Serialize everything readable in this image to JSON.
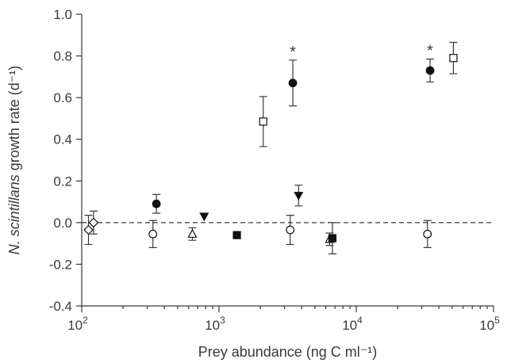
{
  "chart_data": {
    "type": "scatter",
    "title": "",
    "xlabel": "Prey abundance (ng C ml⁻¹)",
    "ylabel_italic": "N. scintillans",
    "ylabel_rest": " growth rate (d⁻¹)",
    "x_scale": "log",
    "xlim": [
      100,
      100000
    ],
    "ylim": [
      -0.4,
      1.0
    ],
    "x_ticks": [
      {
        "value": 100,
        "base": "10",
        "exp": "2"
      },
      {
        "value": 1000,
        "base": "10",
        "exp": "3"
      },
      {
        "value": 10000,
        "base": "10",
        "exp": "4"
      },
      {
        "value": 100000,
        "base": "10",
        "exp": "5"
      }
    ],
    "y_ticks": [
      {
        "value": -0.4,
        "label": "-0.4"
      },
      {
        "value": -0.2,
        "label": "-0.2"
      },
      {
        "value": 0.0,
        "label": "0.0"
      },
      {
        "value": 0.2,
        "label": "0.2"
      },
      {
        "value": 0.4,
        "label": "0.4"
      },
      {
        "value": 0.6,
        "label": "0.6"
      },
      {
        "value": 0.8,
        "label": "0.8"
      },
      {
        "value": 1.0,
        "label": "1.0"
      }
    ],
    "reference_line": {
      "y": 0.0,
      "style": "dashed"
    },
    "grid": false,
    "legend": "none",
    "significance_marker": "*",
    "points": [
      {
        "marker": "diamond-open",
        "x": 112,
        "y": -0.035,
        "err": 0.07
      },
      {
        "marker": "diamond-open",
        "x": 122,
        "y": 0.0,
        "err": 0.055
      },
      {
        "marker": "circle-open",
        "x": 330,
        "y": -0.055,
        "err": 0.065
      },
      {
        "marker": "circle-filled",
        "x": 350,
        "y": 0.09,
        "err": 0.045
      },
      {
        "marker": "triangle-open",
        "x": 640,
        "y": -0.055,
        "err": 0.03
      },
      {
        "marker": "triangle-down-filled",
        "x": 780,
        "y": 0.03,
        "err": 0
      },
      {
        "marker": "square-filled",
        "x": 1350,
        "y": -0.06,
        "err": 0
      },
      {
        "marker": "square-open",
        "x": 2100,
        "y": 0.485,
        "err": 0.12
      },
      {
        "marker": "circle-open",
        "x": 3300,
        "y": -0.035,
        "err": 0.07
      },
      {
        "marker": "circle-filled",
        "x": 3450,
        "y": 0.67,
        "err": 0.11,
        "significant": true
      },
      {
        "marker": "triangle-down-filled",
        "x": 3800,
        "y": 0.13,
        "err": 0.05
      },
      {
        "marker": "triangle-open",
        "x": 6400,
        "y": -0.08,
        "err": 0.03
      },
      {
        "marker": "square-filled",
        "x": 6700,
        "y": -0.075,
        "err": 0.075
      },
      {
        "marker": "circle-open",
        "x": 33000,
        "y": -0.055,
        "err": 0.065
      },
      {
        "marker": "circle-filled",
        "x": 34500,
        "y": 0.73,
        "err": 0.055,
        "significant": true
      },
      {
        "marker": "square-open",
        "x": 51000,
        "y": 0.79,
        "err": 0.075
      }
    ]
  }
}
